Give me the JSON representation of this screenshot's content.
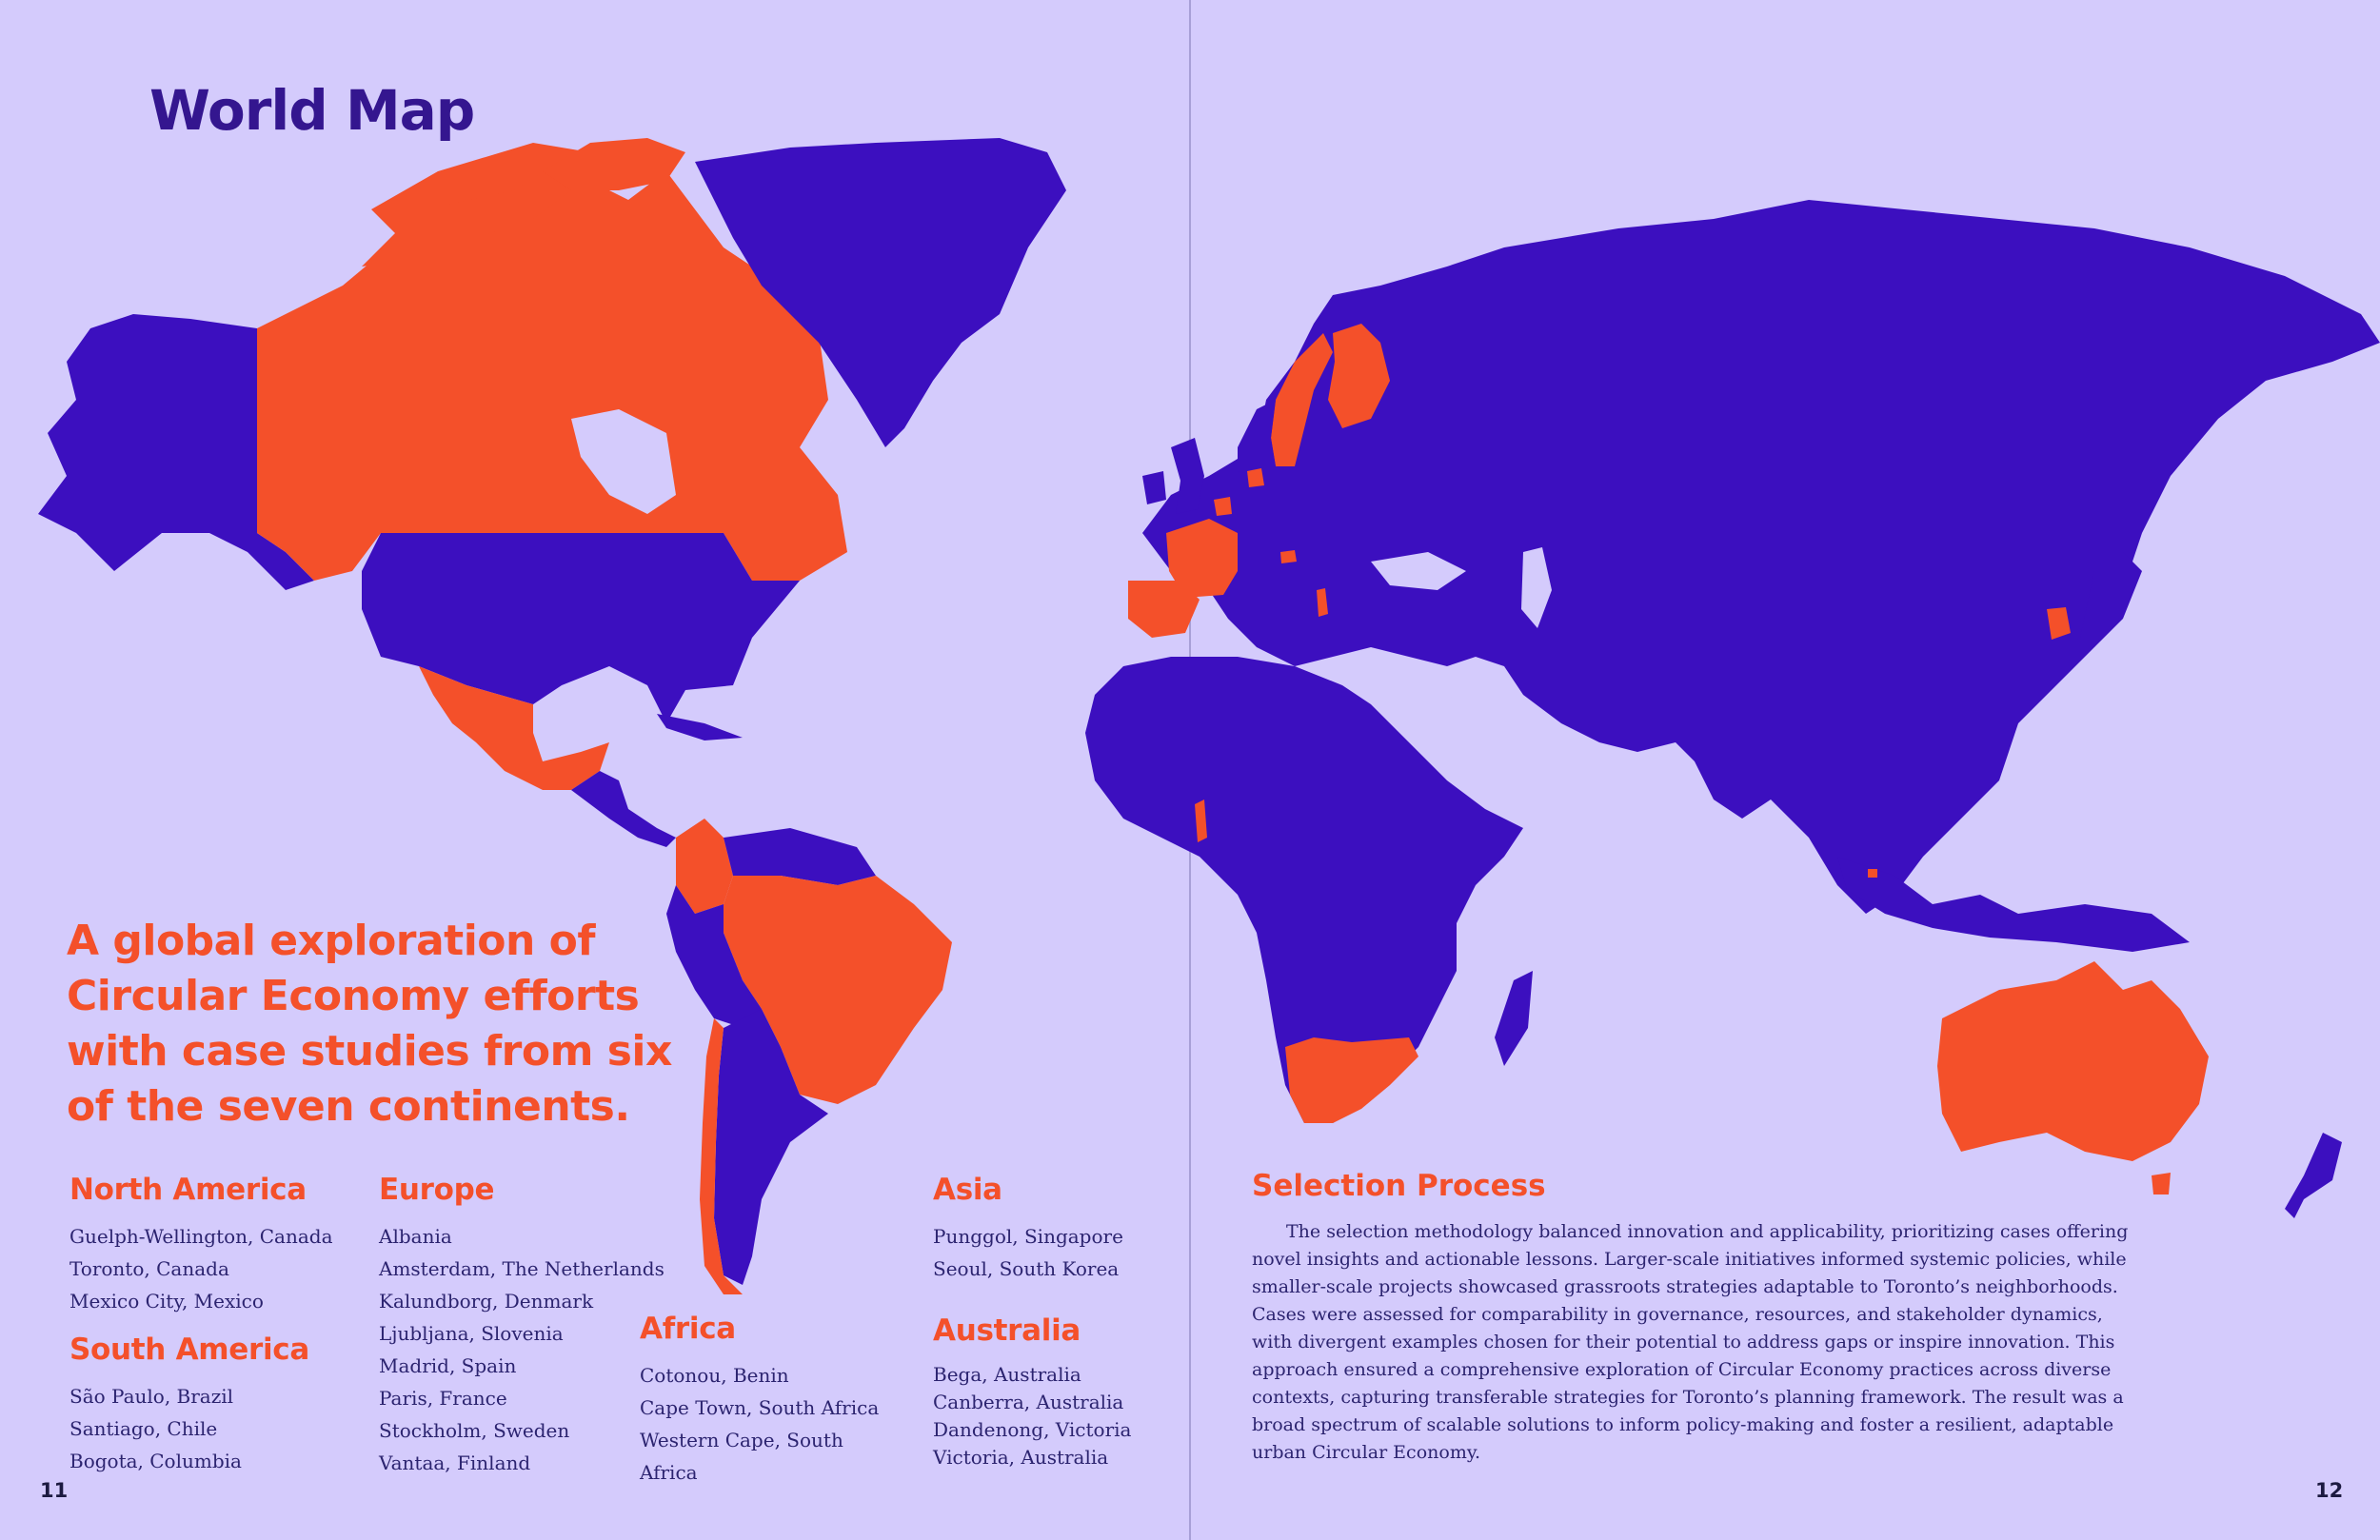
{
  "page": {
    "title": "World Map",
    "tagline": "A global exploration of Circular Economy efforts with case studies from six of the seven continents.",
    "left_page_number": "11",
    "right_page_number": "12"
  },
  "colors": {
    "background": "#d4cbfc",
    "land": "#3c0fbf",
    "highlight": "#f4502a",
    "title": "#34168f",
    "body_text": "#2c2470"
  },
  "regions": [
    {
      "name": "North America",
      "cities": [
        "Guelph-Wellington, Canada",
        "Toronto, Canada",
        "Mexico City, Mexico"
      ]
    },
    {
      "name": "South America",
      "cities": [
        "São Paulo, Brazil",
        "Santiago, Chile",
        "Bogota, Columbia"
      ]
    },
    {
      "name": "Europe",
      "cities": [
        "Albania",
        "Amsterdam, The Netherlands",
        "Kalundborg, Denmark",
        "Ljubljana, Slovenia",
        "Madrid, Spain",
        "Paris, France",
        "Stockholm, Sweden",
        "Vantaa, Finland"
      ]
    },
    {
      "name": "Africa",
      "cities": [
        "Cotonou, Benin",
        "Cape Town, South Africa",
        "Western Cape, South Africa"
      ]
    },
    {
      "name": "Asia",
      "cities": [
        "Punggol, Singapore",
        "Seoul, South Korea"
      ]
    },
    {
      "name": "Australia",
      "cities": [
        "Bega, Australia",
        "Canberra, Australia",
        "Dandenong, Victoria",
        "Victoria, Australia"
      ]
    }
  ],
  "selection": {
    "heading": "Selection Process",
    "body": "The selection methodology balanced innovation and applicability, prioritizing cases offering novel insights and actionable lessons. Larger-scale initiatives informed systemic policies, while smaller-scale projects showcased grassroots strategies adaptable to Toronto’s neighborhoods. Cases were assessed for comparability in governance, resources, and stakeholder dynamics, with divergent examples chosen for their potential to address gaps or inspire innovation. This approach ensured a comprehensive exploration of Circular Economy practices across diverse contexts, capturing transferable strategies for Toronto’s planning framework. The result was a broad spectrum of scalable solutions to inform policy-making and foster a resilient, adaptable urban Circular Economy."
  },
  "map": {
    "highlighted_countries": [
      "Canada",
      "Mexico",
      "Brazil",
      "Colombia",
      "Chile",
      "Sweden",
      "Finland",
      "Denmark",
      "Netherlands",
      "France",
      "Spain",
      "Slovenia",
      "Albania",
      "Benin",
      "South Africa",
      "South Korea",
      "Singapore",
      "Australia"
    ]
  }
}
